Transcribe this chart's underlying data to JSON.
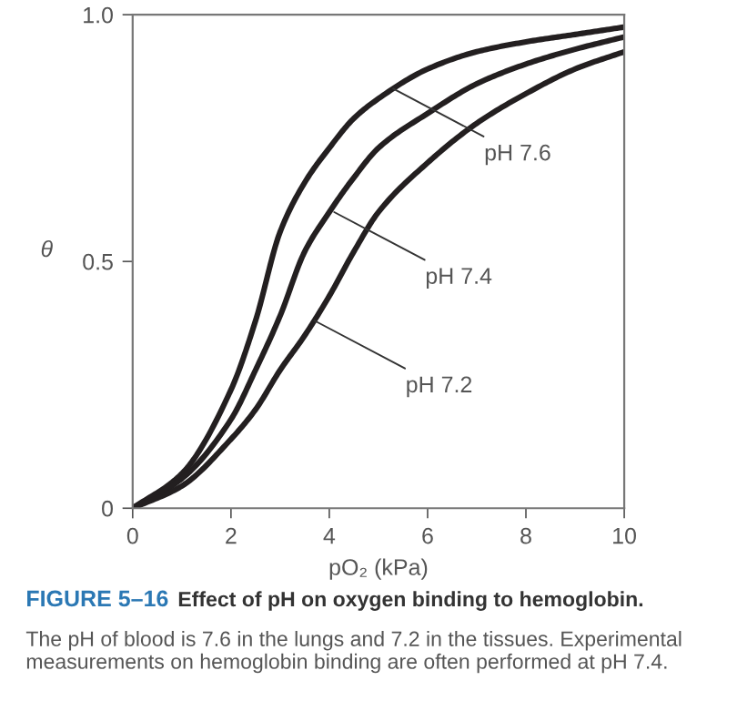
{
  "chart_data": {
    "type": "line",
    "xlabel": "pO₂ (kPa)",
    "ylabel": "θ",
    "x": [
      0,
      1,
      2,
      2.5,
      3,
      3.5,
      4,
      4.5,
      5,
      6,
      7,
      8,
      9,
      10
    ],
    "series": [
      {
        "color": "#231f20",
        "values": [
          0,
          0.07,
          0.24,
          0.38,
          0.56,
          0.66,
          0.73,
          0.79,
          0.83,
          0.89,
          0.925,
          0.945,
          0.96,
          0.975
        ]
      },
      {
        "color": "#231f20",
        "values": [
          0,
          0.06,
          0.18,
          0.28,
          0.39,
          0.52,
          0.6,
          0.67,
          0.73,
          0.8,
          0.86,
          0.9,
          0.93,
          0.955
        ]
      },
      {
        "color": "#231f20",
        "values": [
          0,
          0.045,
          0.14,
          0.2,
          0.28,
          0.35,
          0.43,
          0.52,
          0.6,
          0.7,
          0.78,
          0.84,
          0.89,
          0.925
        ]
      }
    ],
    "annotations": [
      {
        "text": "pH 7.6",
        "x": 5.3,
        "y": 0.85
      },
      {
        "text": "pH 7.4",
        "x": 4.1,
        "y": 0.6
      },
      {
        "text": "pH 7.2",
        "x": 3.7,
        "y": 0.38
      },
      "FIGURE 5–16",
      "Effect of pH on oxygen binding to hemoglobin.",
      "The pH of blood is 7.6 in the lungs and 7.2 in the tissues. Experimental measurements on hemoglobin binding are often performed at pH 7.4."
    ],
    "xlim": [
      0,
      10
    ],
    "ylim": [
      0,
      1
    ],
    "xticks": [
      0,
      2,
      4,
      6,
      8,
      10
    ],
    "yticks": [
      0,
      0.5,
      {
        "value": 1,
        "label": "1.0"
      }
    ],
    "grid": false,
    "legend": false,
    "marker": "none",
    "line_style": "solid"
  }
}
